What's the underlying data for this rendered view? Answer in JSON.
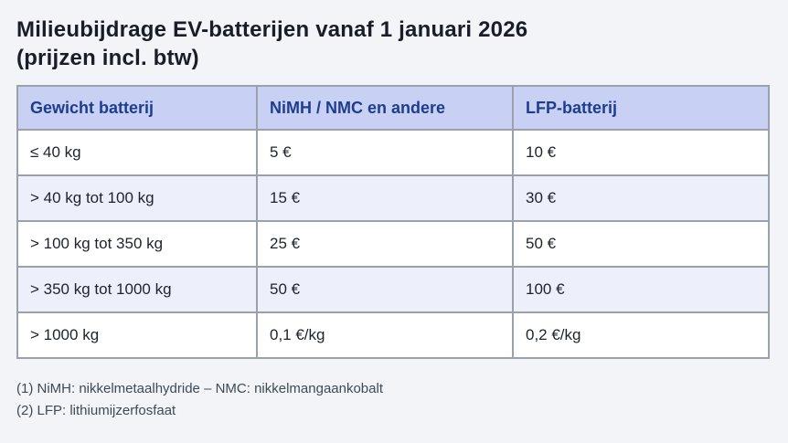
{
  "title": {
    "line1": "Milieubijdrage EV-batterijen vanaf 1 januari 2026",
    "line2": "(prijzen incl. btw)"
  },
  "table": {
    "columns": [
      "Gewicht batterij",
      "NiMH / NMC en andere",
      "LFP-batterij"
    ],
    "rows": [
      {
        "cells": [
          "≤ 40 kg",
          "5 €",
          "10 €"
        ]
      },
      {
        "cells": [
          "> 40 kg tot 100 kg",
          "15 €",
          "30 €"
        ]
      },
      {
        "cells": [
          "> 100 kg tot 350 kg",
          "25 €",
          "50 €"
        ]
      },
      {
        "cells": [
          "> 350 kg tot 1000 kg",
          "50 €",
          "100 €"
        ]
      },
      {
        "cells": [
          "> 1000 kg",
          "0,1 €/kg",
          "0,2 €/kg"
        ]
      }
    ]
  },
  "footnotes": [
    "(1) NiMH: nikkelmetaalhydride – NMC: nikkelmangaankobalt",
    "(2) LFP: lithiumijzerfosfaat"
  ],
  "colors": {
    "page_bg": "#f3f4f7",
    "title_text": "#181d27",
    "header_bg": "#c8d1f3",
    "header_text": "#1e3d8f",
    "stripe_bg": "#edf0fb",
    "border": "#9aa1ab",
    "cell_text": "#1d232b",
    "footnote_text": "#3f4a55"
  }
}
